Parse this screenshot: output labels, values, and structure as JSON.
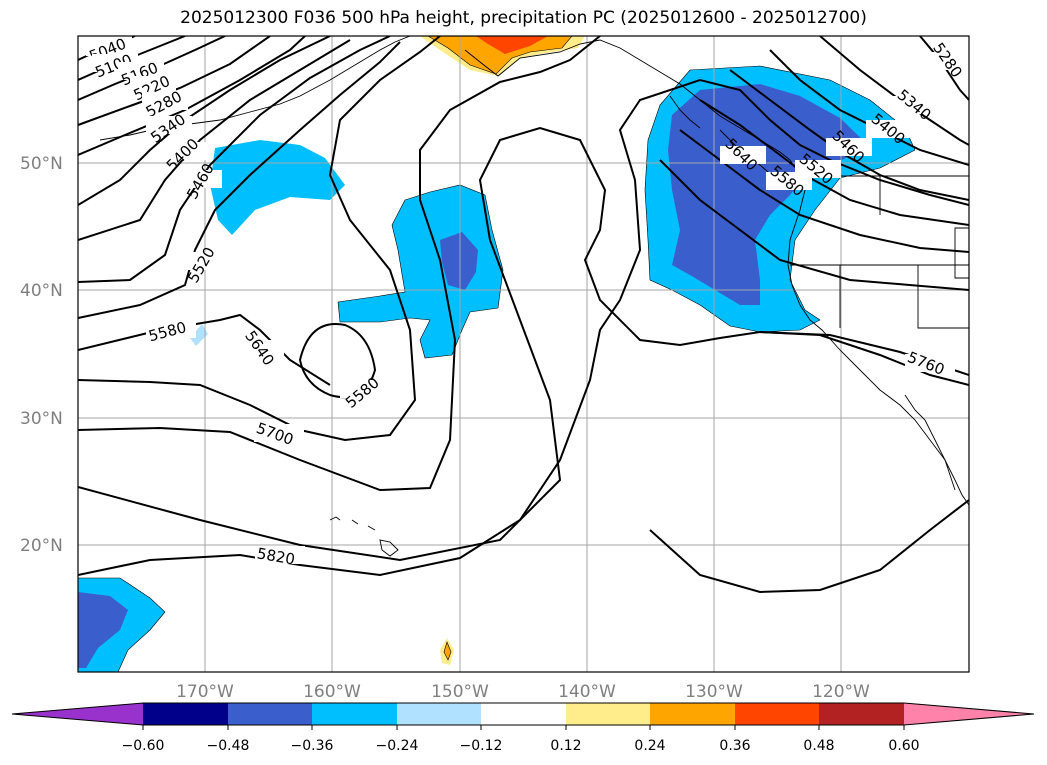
{
  "title": "2025012300 F036 500 hPa height, precipitation PC (2025012600 - 2025012700)",
  "map": {
    "lon_range": [
      -180,
      -110
    ],
    "lat_range": [
      10,
      60
    ],
    "lat_labels": [
      "50°N",
      "40°N",
      "30°N",
      "20°N"
    ],
    "lon_labels": [
      "170°W",
      "160°W",
      "150°W",
      "140°W",
      "130°W",
      "120°W"
    ],
    "grid": true
  },
  "contour_labels": [
    "5040",
    "5100",
    "5160",
    "5220",
    "5280",
    "5340",
    "5400",
    "5460",
    "5520",
    "5580",
    "5640",
    "5700",
    "5580",
    "5820",
    "5280",
    "5340",
    "5400",
    "5460",
    "5520",
    "5580",
    "5640",
    "5760"
  ],
  "colorbar": {
    "ticks": [
      "−0.60",
      "−0.48",
      "−0.36",
      "−0.24",
      "−0.12",
      "0.12",
      "0.24",
      "0.36",
      "0.48",
      "0.60"
    ],
    "colors": [
      "#9932cc",
      "#00008b",
      "#3a5fcd",
      "#00bfff",
      "#b0e2ff",
      "#ffffff",
      "#ffec8b",
      "#ffa500",
      "#ff4500",
      "#b22222",
      "#ff82ab"
    ]
  }
}
